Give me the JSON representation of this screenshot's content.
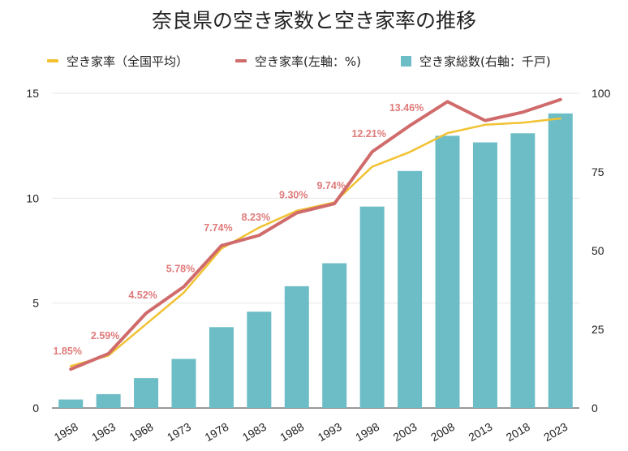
{
  "title": "奈良県の空き家数と空き家率の推移",
  "legend": {
    "national": "空き家率（全国平均）",
    "nara_rate": "空き家率(左軸：%)",
    "nara_count": "空き家総数(右軸：千戸)"
  },
  "colors": {
    "national": "#f1c232",
    "nara_rate": "#d06b6b",
    "bars": "#6cbdc6",
    "data_label": "#e07a7a",
    "grid": "#e6e6e6"
  },
  "chart_data": {
    "type": "bar",
    "title": "奈良県の空き家数と空き家率の推移",
    "categories": [
      "1958",
      "1963",
      "1968",
      "1973",
      "1978",
      "1983",
      "1988",
      "1993",
      "1998",
      "2003",
      "2008",
      "2013",
      "2018",
      "2023"
    ],
    "left_axis": {
      "ylim": [
        0,
        15
      ],
      "ticks": [
        "0",
        "5",
        "10",
        "15"
      ]
    },
    "right_axis": {
      "ylim": [
        0,
        100
      ],
      "ticks": [
        "0",
        "25",
        "50",
        "75",
        "100"
      ]
    },
    "grid": true,
    "legend_position": "top",
    "series": [
      {
        "name": "空き家総数(右軸：千戸)",
        "type": "bar",
        "axis": "right",
        "values": [
          2.7,
          4.4,
          9.5,
          15.6,
          25.7,
          30.6,
          38.7,
          46.0,
          64.0,
          75.3,
          86.5,
          84.4,
          87.3,
          93.6
        ]
      },
      {
        "name": "空き家率(左軸：%)",
        "type": "line",
        "axis": "left",
        "values": [
          1.85,
          2.59,
          4.52,
          5.78,
          7.74,
          8.23,
          9.3,
          9.74,
          12.21,
          13.46,
          14.6,
          13.7,
          14.1,
          14.7
        ],
        "data_labels": [
          "1.85%",
          "2.59%",
          "4.52%",
          "5.78%",
          "7.74%",
          "8.23%",
          "9.30%",
          "9.74%",
          "12.21%",
          "13.46%"
        ]
      },
      {
        "name": "空き家率（全国平均）",
        "type": "line",
        "axis": "left",
        "values": [
          2.0,
          2.5,
          4.0,
          5.5,
          7.6,
          8.6,
          9.4,
          9.8,
          11.5,
          12.2,
          13.1,
          13.5,
          13.6,
          13.8
        ]
      }
    ]
  }
}
